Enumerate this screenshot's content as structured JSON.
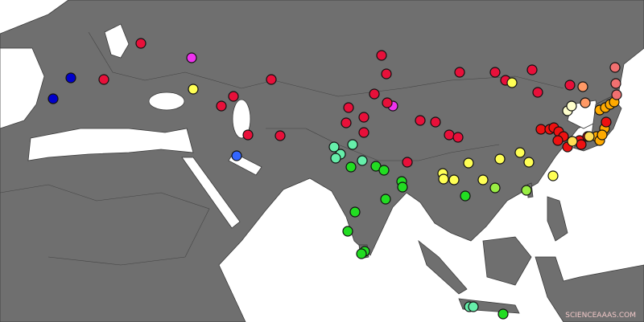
{
  "watermark": "SCIENCEAAAS.COM"
}
